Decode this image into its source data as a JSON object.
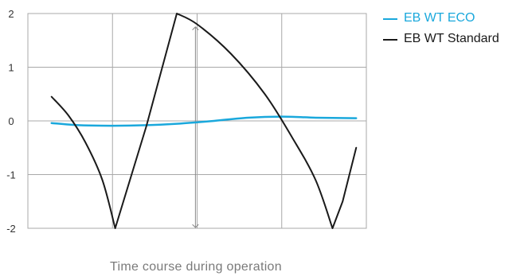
{
  "chart_data": {
    "type": "line",
    "title": "",
    "xlabel": "Time course during operation",
    "ylabel": "",
    "xlim": [
      0,
      10
    ],
    "ylim": [
      -2,
      2
    ],
    "yticks": [
      2,
      1,
      0,
      -1,
      -2
    ],
    "grid": true,
    "legend_position": "right",
    "colors": {
      "eco": "#1aa8dc",
      "standard": "#1a1a1a",
      "grid": "#a8a8a8",
      "axis": "#888888"
    },
    "series": [
      {
        "name": "EB WT ECO",
        "color": "#1aa8dc",
        "x": [
          0.7,
          1.5,
          2.5,
          3.5,
          4.5,
          5.5,
          6.5,
          7.5,
          8.5,
          9.7
        ],
        "y": [
          -0.04,
          -0.08,
          -0.09,
          -0.08,
          -0.05,
          0.0,
          0.06,
          0.08,
          0.06,
          0.05
        ]
      },
      {
        "name": "EB WT Standard",
        "color": "#1a1a1a",
        "x": [
          0.7,
          1.2,
          1.7,
          2.2,
          2.58,
          3.5,
          4.4,
          5.0,
          6.0,
          7.0,
          7.8,
          8.5,
          9.0,
          9.3,
          9.7
        ],
        "y": [
          0.45,
          0.1,
          -0.4,
          -1.1,
          -2.0,
          -0.1,
          2.0,
          1.8,
          1.25,
          0.5,
          -0.3,
          -1.1,
          -2.0,
          -1.5,
          -0.5
        ]
      }
    ],
    "annotation": {
      "type": "double-arrow",
      "x": 4.95,
      "y_from": -2,
      "y_to": 1.75
    }
  }
}
